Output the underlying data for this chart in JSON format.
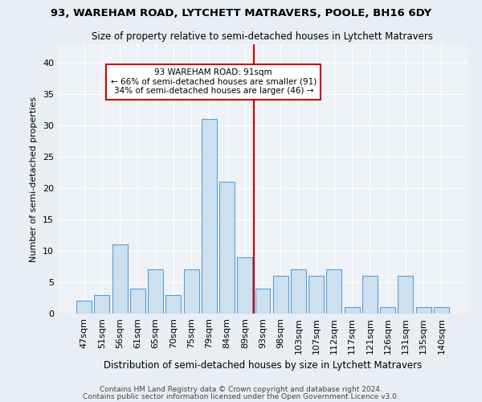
{
  "title1": "93, WAREHAM ROAD, LYTCHETT MATRAVERS, POOLE, BH16 6DY",
  "title2": "Size of property relative to semi-detached houses in Lytchett Matravers",
  "xlabel": "Distribution of semi-detached houses by size in Lytchett Matravers",
  "ylabel": "Number of semi-detached properties",
  "categories": [
    "47sqm",
    "51sqm",
    "56sqm",
    "61sqm",
    "65sqm",
    "70sqm",
    "75sqm",
    "79sqm",
    "84sqm",
    "89sqm",
    "93sqm",
    "98sqm",
    "103sqm",
    "107sqm",
    "112sqm",
    "117sqm",
    "121sqm",
    "126sqm",
    "131sqm",
    "135sqm",
    "140sqm"
  ],
  "values": [
    2,
    3,
    11,
    4,
    7,
    3,
    7,
    31,
    21,
    9,
    4,
    6,
    7,
    6,
    7,
    1,
    6,
    1,
    6,
    1,
    1
  ],
  "bar_color": "#cce0f0",
  "bar_edge_color": "#5a9fd4",
  "vline_x": 9.5,
  "vline_color": "#cc0000",
  "annotation_text": "93 WAREHAM ROAD: 91sqm\n← 66% of semi-detached houses are smaller (91)\n34% of semi-detached houses are larger (46) →",
  "annotation_box_color": "#cc0000",
  "ylim": [
    0,
    43
  ],
  "yticks": [
    0,
    5,
    10,
    15,
    20,
    25,
    30,
    35,
    40
  ],
  "footer1": "Contains HM Land Registry data © Crown copyright and database right 2024.",
  "footer2": "Contains public sector information licensed under the Open Government Licence v3.0.",
  "bg_color": "#e8eef4",
  "plot_bg_color": "#eef2f7"
}
